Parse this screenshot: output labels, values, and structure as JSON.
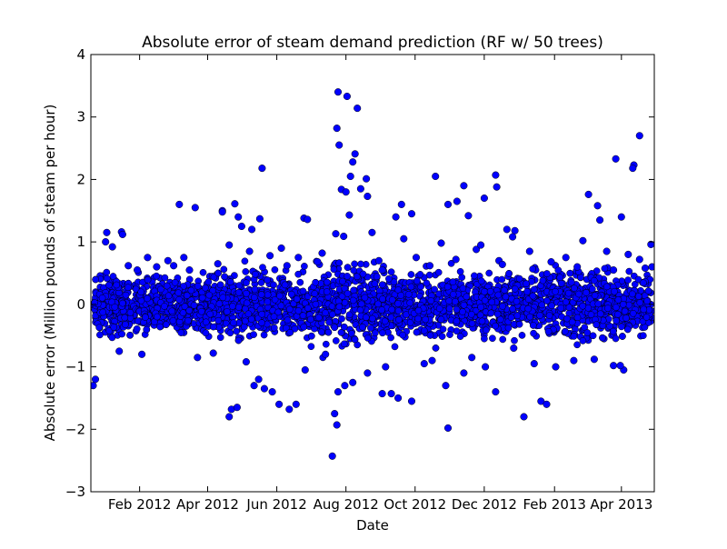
{
  "chart_data": {
    "type": "scatter",
    "title": "Absolute error of steam demand prediction (RF w/ 50 trees)",
    "xlabel": "Date",
    "ylabel": "Absolute error (Million pounds of steam per hour)",
    "xlim": [
      "2011-12-20",
      "2013-04-30"
    ],
    "ylim": [
      -3,
      4
    ],
    "grid": false,
    "yticks": [
      -3,
      -2,
      -1,
      0,
      1,
      2,
      3,
      4
    ],
    "xticks": [
      {
        "date": "2012-02-01",
        "label": "Feb 2012"
      },
      {
        "date": "2012-04-01",
        "label": "Apr 2012"
      },
      {
        "date": "2012-06-01",
        "label": "Jun 2012"
      },
      {
        "date": "2012-08-01",
        "label": "Aug 2012"
      },
      {
        "date": "2012-10-01",
        "label": "Oct 2012"
      },
      {
        "date": "2012-12-01",
        "label": "Dec 2012"
      },
      {
        "date": "2013-02-01",
        "label": "Feb 2013"
      },
      {
        "date": "2013-04-01",
        "label": "Apr 2013"
      }
    ],
    "marker_color": "#0000ff",
    "points": [
      [
        "2012-07-20",
        -2.43
      ],
      [
        "2012-07-22",
        -1.75
      ],
      [
        "2012-07-24",
        -1.93
      ],
      [
        "2012-07-25",
        3.4
      ],
      [
        "2012-07-24",
        2.82
      ],
      [
        "2012-07-26",
        2.55
      ],
      [
        "2012-08-02",
        3.33
      ],
      [
        "2012-08-11",
        3.14
      ],
      [
        "2012-08-09",
        2.41
      ],
      [
        "2012-08-07",
        2.28
      ],
      [
        "2012-08-05",
        2.05
      ],
      [
        "2012-08-14",
        1.85
      ],
      [
        "2012-08-19",
        2.01
      ],
      [
        "2012-07-28",
        1.84
      ],
      [
        "2012-08-01",
        1.8
      ],
      [
        "2012-08-20",
        1.73
      ],
      [
        "2012-08-04",
        1.43
      ],
      [
        "2012-07-23",
        1.13
      ],
      [
        "2012-07-30",
        1.09
      ],
      [
        "2012-05-19",
        2.18
      ],
      [
        "2012-04-14",
        1.5
      ],
      [
        "2012-04-25",
        1.61
      ],
      [
        "2012-04-28",
        1.4
      ],
      [
        "2012-05-01",
        1.25
      ],
      [
        "2012-05-10",
        1.2
      ],
      [
        "2012-05-17",
        1.37
      ],
      [
        "2012-06-25",
        1.38
      ],
      [
        "2012-06-28",
        1.36
      ],
      [
        "2012-03-07",
        1.6
      ],
      [
        "2012-03-21",
        1.55
      ],
      [
        "2012-04-14",
        1.48
      ],
      [
        "2012-01-03",
        1.15
      ],
      [
        "2012-01-16",
        1.16
      ],
      [
        "2012-01-17",
        1.12
      ],
      [
        "2012-01-02",
        1.0
      ],
      [
        "2011-12-22",
        -1.3
      ],
      [
        "2011-12-24",
        -1.2
      ],
      [
        "2012-04-20",
        -1.8
      ],
      [
        "2012-04-22",
        -1.68
      ],
      [
        "2012-04-27",
        -1.65
      ],
      [
        "2012-05-12",
        -1.3
      ],
      [
        "2012-05-16",
        -1.2
      ],
      [
        "2012-05-21",
        -1.35
      ],
      [
        "2012-05-28",
        -1.4
      ],
      [
        "2012-06-03",
        -1.6
      ],
      [
        "2012-06-12",
        -1.68
      ],
      [
        "2012-06-18",
        -1.6
      ],
      [
        "2012-07-25",
        -1.4
      ],
      [
        "2012-07-31",
        -1.3
      ],
      [
        "2012-09-02",
        -1.43
      ],
      [
        "2012-09-10",
        -1.43
      ],
      [
        "2012-09-16",
        -1.5
      ],
      [
        "2012-09-28",
        -1.55
      ],
      [
        "2012-10-30",
        -1.98
      ],
      [
        "2012-10-28",
        -1.3
      ],
      [
        "2012-11-13",
        -1.1
      ],
      [
        "2012-12-11",
        -1.4
      ],
      [
        "2013-01-05",
        -1.8
      ],
      [
        "2013-01-20",
        -1.55
      ],
      [
        "2013-01-25",
        -1.6
      ],
      [
        "2013-02-02",
        -1.0
      ],
      [
        "2013-03-25",
        -0.98
      ],
      [
        "2013-04-03",
        -1.05
      ],
      [
        "2012-09-19",
        1.6
      ],
      [
        "2012-09-14",
        1.4
      ],
      [
        "2012-09-28",
        1.45
      ],
      [
        "2012-10-19",
        2.05
      ],
      [
        "2012-10-30",
        1.6
      ],
      [
        "2012-11-07",
        1.65
      ],
      [
        "2012-11-13",
        1.9
      ],
      [
        "2012-11-17",
        1.42
      ],
      [
        "2012-12-01",
        1.7
      ],
      [
        "2012-12-11",
        2.07
      ],
      [
        "2012-12-12",
        1.88
      ],
      [
        "2012-12-21",
        1.2
      ],
      [
        "2012-12-28",
        1.18
      ],
      [
        "2013-02-26",
        1.02
      ],
      [
        "2013-03-03",
        1.76
      ],
      [
        "2013-03-11",
        1.58
      ],
      [
        "2013-03-13",
        1.35
      ],
      [
        "2013-03-27",
        2.33
      ],
      [
        "2013-04-01",
        1.4
      ],
      [
        "2013-04-12",
        2.23
      ],
      [
        "2013-04-11",
        2.18
      ],
      [
        "2013-04-17",
        2.7
      ],
      [
        "2013-04-27",
        0.96
      ],
      [
        "2013-04-28",
        0.6
      ],
      [
        "2013-02-11",
        0.75
      ],
      [
        "2013-01-10",
        0.85
      ],
      [
        "2012-11-24",
        0.88
      ],
      [
        "2012-10-14",
        0.62
      ],
      [
        "2012-09-02",
        0.55
      ],
      [
        "2012-06-20",
        0.75
      ],
      [
        "2012-05-08",
        0.85
      ],
      [
        "2012-03-11",
        0.75
      ],
      [
        "2012-02-26",
        0.7
      ],
      [
        "2012-02-08",
        0.75
      ],
      [
        "2012-01-22",
        0.62
      ],
      [
        "2013-03-19",
        0.85
      ],
      [
        "2012-12-26",
        1.08
      ],
      [
        "2012-11-28",
        0.95
      ],
      [
        "2012-10-24",
        0.98
      ],
      [
        "2012-07-07",
        0.68
      ],
      [
        "2012-06-05",
        0.9
      ],
      [
        "2012-04-20",
        0.95
      ],
      [
        "2012-03-16",
        0.55
      ],
      [
        "2012-01-08",
        0.92
      ],
      [
        "2012-08-24",
        1.15
      ],
      [
        "2012-09-21",
        1.05
      ],
      [
        "2012-10-09",
        -0.95
      ],
      [
        "2012-12-02",
        -1.0
      ],
      [
        "2013-02-18",
        -0.9
      ],
      [
        "2013-03-31",
        -0.98
      ],
      [
        "2012-06-26",
        -1.05
      ],
      [
        "2012-05-05",
        -0.92
      ],
      [
        "2012-03-23",
        -0.85
      ],
      [
        "2012-02-03",
        -0.8
      ],
      [
        "2012-01-14",
        -0.75
      ],
      [
        "2012-09-05",
        -1.0
      ],
      [
        "2012-10-16",
        -0.9
      ],
      [
        "2012-11-20",
        -0.85
      ],
      [
        "2013-01-14",
        -0.95
      ],
      [
        "2013-03-08",
        -0.88
      ],
      [
        "2012-08-20",
        -1.1
      ],
      [
        "2012-08-07",
        -1.25
      ],
      [
        "2012-07-14",
        -0.8
      ],
      [
        "2012-04-06",
        -0.78
      ],
      [
        "2012-12-27",
        -0.7
      ],
      [
        "2012-12-14",
        0.7
      ],
      [
        "2013-01-29",
        0.68
      ],
      [
        "2012-11-06",
        0.72
      ],
      [
        "2012-10-02",
        0.75
      ],
      [
        "2012-08-30",
        0.7
      ],
      [
        "2012-07-11",
        0.82
      ],
      [
        "2012-06-10",
        0.62
      ],
      [
        "2012-05-26",
        0.78
      ],
      [
        "2012-04-10",
        0.65
      ],
      [
        "2012-03-02",
        0.62
      ],
      [
        "2012-02-16",
        0.6
      ],
      [
        "2012-01-30",
        0.55
      ],
      [
        "2013-03-25",
        0.55
      ],
      [
        "2013-04-22",
        0.58
      ],
      [
        "2013-04-07",
        0.8
      ],
      [
        "2013-04-17",
        0.72
      ],
      [
        "2013-02-21",
        0.6
      ],
      [
        "2012-12-17",
        0.64
      ]
    ],
    "band": [
      [
        "2011-12-22",
        0.15,
        0.45
      ],
      [
        "2011-12-28",
        0.2,
        0.5
      ],
      [
        "2012-01-05",
        0.25,
        0.55
      ],
      [
        "2012-01-20",
        0.25,
        0.5
      ],
      [
        "2012-02-10",
        0.25,
        0.5
      ],
      [
        "2012-03-01",
        0.25,
        0.5
      ],
      [
        "2012-03-20",
        0.25,
        0.5
      ],
      [
        "2012-04-10",
        0.28,
        0.55
      ],
      [
        "2012-05-01",
        0.3,
        0.6
      ],
      [
        "2012-05-20",
        0.3,
        0.6
      ],
      [
        "2012-06-10",
        0.3,
        0.6
      ],
      [
        "2012-07-01",
        0.32,
        0.62
      ],
      [
        "2012-07-20",
        0.35,
        0.7
      ],
      [
        "2012-08-10",
        0.35,
        0.7
      ],
      [
        "2012-09-01",
        0.3,
        0.6
      ],
      [
        "2012-09-20",
        0.28,
        0.55
      ],
      [
        "2012-10-10",
        0.28,
        0.55
      ],
      [
        "2012-11-01",
        0.3,
        0.6
      ],
      [
        "2012-11-20",
        0.3,
        0.6
      ],
      [
        "2012-12-10",
        0.3,
        0.6
      ],
      [
        "2013-01-01",
        0.3,
        0.6
      ],
      [
        "2013-01-20",
        0.32,
        0.62
      ],
      [
        "2013-02-10",
        0.32,
        0.62
      ],
      [
        "2013-03-01",
        0.3,
        0.6
      ],
      [
        "2013-03-20",
        0.3,
        0.6
      ],
      [
        "2013-04-10",
        0.28,
        0.55
      ],
      [
        "2013-04-28",
        0.25,
        0.5
      ]
    ],
    "band_note_points": 3000
  }
}
